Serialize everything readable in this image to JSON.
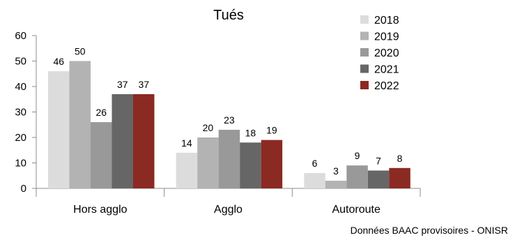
{
  "chart_data": {
    "type": "bar",
    "title": "Tués",
    "categories": [
      "Hors agglo",
      "Agglo",
      "Autoroute"
    ],
    "series": [
      {
        "name": "2018",
        "color": "#dcdcdc",
        "values": [
          46,
          14,
          6
        ]
      },
      {
        "name": "2019",
        "color": "#b3b3b3",
        "values": [
          50,
          20,
          3
        ]
      },
      {
        "name": "2020",
        "color": "#999999",
        "values": [
          26,
          23,
          9
        ]
      },
      {
        "name": "2021",
        "color": "#666666",
        "values": [
          37,
          18,
          7
        ]
      },
      {
        "name": "2022",
        "color": "#8b2a22",
        "values": [
          37,
          19,
          8
        ]
      }
    ],
    "ylim": [
      0,
      60
    ],
    "yticks": [
      0,
      10,
      20,
      30,
      40,
      50,
      60
    ],
    "grid": false,
    "legend": "top-right",
    "data_labels": true
  },
  "source_note": "Données BAAC provisoires - ONISR"
}
